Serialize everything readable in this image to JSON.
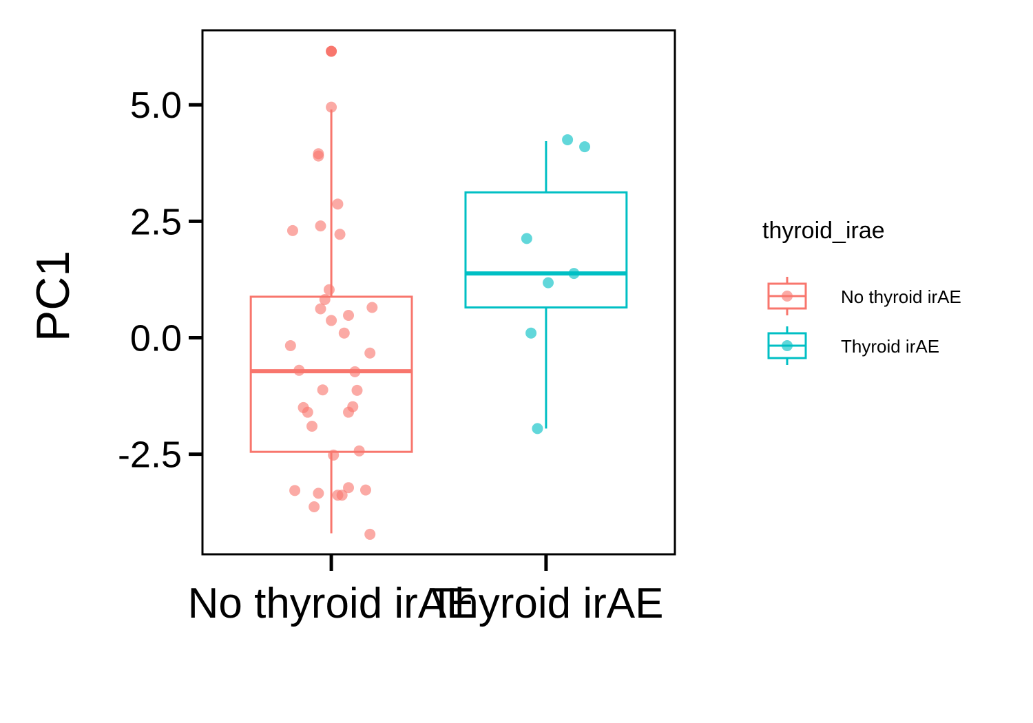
{
  "chart_data": {
    "type": "boxplot",
    "title": "",
    "xlabel": "",
    "ylabel": "PC1",
    "ylim": [
      -4.65,
      6.6
    ],
    "y_ticks": [
      {
        "value": -2.5,
        "label": "-2.5"
      },
      {
        "value": 0.0,
        "label": "0.0"
      },
      {
        "value": 2.5,
        "label": "2.5"
      },
      {
        "value": 5.0,
        "label": "5.0"
      }
    ],
    "grid": false,
    "legend": {
      "title": "thyroid_irae",
      "placement": "right"
    },
    "categories": [
      "No thyroid irAE",
      "Thyroid irAE"
    ],
    "series": [
      {
        "name": "No thyroid irAE",
        "color": "#F8766D",
        "box": {
          "q1": -2.45,
          "median": -0.72,
          "q3": 0.88,
          "whisker_low": -4.2,
          "whisker_high": 4.9
        },
        "outliers": [
          6.15
        ],
        "points": [
          {
            "x": 0.0,
            "y": 4.95
          },
          {
            "x": -0.06,
            "y": 3.95
          },
          {
            "x": -0.06,
            "y": 3.9
          },
          {
            "x": 0.03,
            "y": 2.87
          },
          {
            "x": -0.18,
            "y": 2.3
          },
          {
            "x": -0.05,
            "y": 2.4
          },
          {
            "x": 0.04,
            "y": 2.22
          },
          {
            "x": -0.01,
            "y": 1.03
          },
          {
            "x": -0.03,
            "y": 0.82
          },
          {
            "x": -0.05,
            "y": 0.62
          },
          {
            "x": 0.19,
            "y": 0.65
          },
          {
            "x": 0.08,
            "y": 0.48
          },
          {
            "x": 0.0,
            "y": 0.37
          },
          {
            "x": 0.06,
            "y": 0.1
          },
          {
            "x": -0.19,
            "y": -0.17
          },
          {
            "x": 0.18,
            "y": -0.33
          },
          {
            "x": -0.15,
            "y": -0.7
          },
          {
            "x": 0.11,
            "y": -0.73
          },
          {
            "x": -0.04,
            "y": -1.12
          },
          {
            "x": 0.12,
            "y": -1.13
          },
          {
            "x": -0.13,
            "y": -1.5
          },
          {
            "x": -0.11,
            "y": -1.6
          },
          {
            "x": 0.1,
            "y": -1.48
          },
          {
            "x": 0.08,
            "y": -1.6
          },
          {
            "x": -0.09,
            "y": -1.9
          },
          {
            "x": 0.13,
            "y": -2.43
          },
          {
            "x": 0.01,
            "y": -2.52
          },
          {
            "x": -0.17,
            "y": -3.28
          },
          {
            "x": -0.06,
            "y": -3.34
          },
          {
            "x": 0.03,
            "y": -3.38
          },
          {
            "x": 0.05,
            "y": -3.38
          },
          {
            "x": 0.08,
            "y": -3.22
          },
          {
            "x": 0.16,
            "y": -3.27
          },
          {
            "x": -0.08,
            "y": -3.63
          },
          {
            "x": 0.18,
            "y": -4.22
          }
        ]
      },
      {
        "name": "Thyroid irAE",
        "color": "#00BFC4",
        "box": {
          "q1": 0.65,
          "median": 1.38,
          "q3": 3.12,
          "whisker_low": -1.95,
          "whisker_high": 4.22
        },
        "outliers": [],
        "points": [
          {
            "x": 0.1,
            "y": 4.25
          },
          {
            "x": 0.18,
            "y": 4.1
          },
          {
            "x": -0.09,
            "y": 2.13
          },
          {
            "x": 0.13,
            "y": 1.38
          },
          {
            "x": 0.01,
            "y": 1.18
          },
          {
            "x": -0.07,
            "y": 0.1
          },
          {
            "x": -0.04,
            "y": -1.95
          }
        ]
      }
    ]
  }
}
